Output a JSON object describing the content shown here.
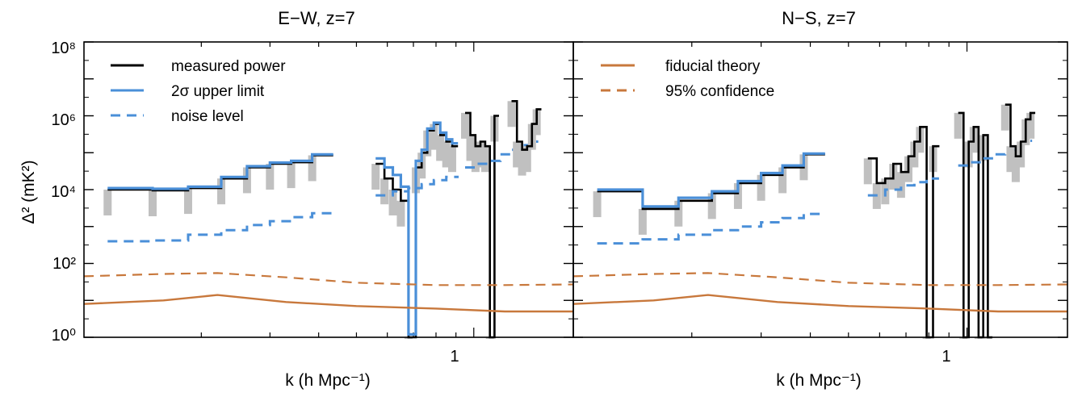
{
  "chart_data": [
    {
      "type": "line",
      "title": "E−W, z=7",
      "xlabel": "k (h Mpc⁻¹)",
      "ylabel": "Δ² (mK²)",
      "xscale": "log",
      "yscale": "log",
      "xlim": [
        0.1,
        1.8
      ],
      "ylim": [
        1,
        100000000
      ],
      "x_tick_labels": [
        "1"
      ],
      "y_tick_labels": [
        "10⁰",
        "10²",
        "10⁴",
        "10⁶",
        "10⁸"
      ],
      "legend": [
        "measured power",
        "2σ upper limit",
        "noise level"
      ],
      "colors": {
        "measured": "#000000",
        "upper": "#4a8fd8",
        "noise": "#4a8fd8",
        "theory": "#c8783c",
        "band": "#c0c0c0"
      },
      "series": [
        {
          "name": "measured power",
          "x": [
            0.115,
            0.15,
            0.185,
            0.225,
            0.262,
            0.3,
            0.34,
            0.385
          ],
          "values": [
            10000,
            9500,
            11000,
            20000,
            40000,
            50000,
            55000,
            85000
          ]
        },
        {
          "name": "2σ upper limit",
          "x": [
            0.115,
            0.15,
            0.185,
            0.225,
            0.262,
            0.3,
            0.34,
            0.385
          ],
          "values": [
            11000,
            10500,
            12000,
            22000,
            43000,
            54000,
            60000,
            90000
          ]
        },
        {
          "name": "noise level",
          "x": [
            0.115,
            0.15,
            0.185,
            0.225,
            0.262,
            0.3,
            0.34,
            0.385
          ],
          "values": [
            400,
            420,
            600,
            800,
            1100,
            1400,
            1800,
            2300
          ]
        },
        {
          "name": "measured power",
          "x": [
            0.56,
            0.59,
            0.62,
            0.65,
            0.68,
            0.71,
            0.735,
            0.76,
            0.79,
            0.82,
            0.85,
            0.88
          ],
          "values": [
            50000,
            20000,
            10000,
            5000,
            1,
            40000,
            100000,
            400000,
            600000,
            300000,
            200000,
            150000
          ]
        },
        {
          "name": "2σ upper limit",
          "x": [
            0.56,
            0.59,
            0.62,
            0.65,
            0.68,
            0.71,
            0.735,
            0.76,
            0.79,
            0.82,
            0.85,
            0.88
          ],
          "values": [
            70000,
            40000,
            25000,
            12000,
            1.2,
            60000,
            120000,
            450000,
            650000,
            350000,
            230000,
            180000
          ]
        },
        {
          "name": "noise level",
          "x": [
            0.56,
            0.62,
            0.68,
            0.735,
            0.79,
            0.85
          ],
          "values": [
            7000,
            9000,
            11000,
            14000,
            18000,
            22000
          ]
        },
        {
          "name": "measured power",
          "x": [
            0.95,
            0.98,
            1.01,
            1.04,
            1.07,
            1.1,
            1.13
          ],
          "values": [
            1200000,
            300000,
            150000,
            200000,
            150000,
            1,
            1000000
          ]
        },
        {
          "name": "noise level",
          "x": [
            0.95,
            1.02,
            1.1,
            1.17,
            1.25,
            1.32,
            1.39
          ],
          "values": [
            40000,
            50000,
            60000,
            90000,
            120000,
            160000,
            200000
          ]
        },
        {
          "name": "measured power",
          "x": [
            1.25,
            1.29,
            1.33,
            1.37,
            1.41,
            1.45
          ],
          "values": [
            2500000,
            200000,
            120000,
            150000,
            600000,
            1500000
          ]
        },
        {
          "name": "fiducial theory",
          "x": [
            0.1,
            0.16,
            0.22,
            0.33,
            0.5,
            0.8,
            1.2,
            1.8
          ],
          "values": [
            8,
            10,
            14,
            9,
            7,
            6,
            5,
            5
          ]
        },
        {
          "name": "95% confidence",
          "x": [
            0.1,
            0.16,
            0.22,
            0.33,
            0.5,
            0.8,
            1.2,
            1.8
          ],
          "values": [
            45,
            52,
            55,
            42,
            30,
            26,
            26,
            27
          ]
        }
      ]
    },
    {
      "type": "line",
      "title": "N−S, z=7",
      "xlabel": "k (h Mpc⁻¹)",
      "ylabel": "",
      "xscale": "log",
      "yscale": "log",
      "xlim": [
        0.1,
        1.8
      ],
      "ylim": [
        1,
        100000000
      ],
      "x_tick_labels": [
        "1"
      ],
      "legend": [
        "fiducial theory",
        "95% confidence"
      ],
      "series": [
        {
          "name": "measured power",
          "x": [
            0.115,
            0.15,
            0.185,
            0.225,
            0.262,
            0.3,
            0.34,
            0.385
          ],
          "values": [
            9000,
            3000,
            5000,
            8000,
            15000,
            25000,
            40000,
            90000
          ]
        },
        {
          "name": "2σ upper limit",
          "x": [
            0.115,
            0.15,
            0.185,
            0.225,
            0.262,
            0.3,
            0.34,
            0.385
          ],
          "values": [
            10000,
            3500,
            6000,
            9000,
            17000,
            28000,
            45000,
            95000
          ]
        },
        {
          "name": "noise level",
          "x": [
            0.115,
            0.15,
            0.185,
            0.225,
            0.262,
            0.3,
            0.34,
            0.385
          ],
          "values": [
            350,
            450,
            600,
            800,
            1000,
            1300,
            1700,
            2200
          ]
        },
        {
          "name": "measured power",
          "x": [
            0.56,
            0.59,
            0.62,
            0.65,
            0.68,
            0.71,
            0.735,
            0.76,
            0.79,
            0.82
          ],
          "values": [
            70000,
            15000,
            20000,
            50000,
            30000,
            80000,
            200000,
            500000,
            1,
            150000
          ]
        },
        {
          "name": "noise level",
          "x": [
            0.56,
            0.62,
            0.68,
            0.735,
            0.79
          ],
          "values": [
            7000,
            10000,
            13000,
            16000,
            20000
          ]
        },
        {
          "name": "measured power",
          "x": [
            0.95,
            0.98,
            1.01,
            1.04,
            1.07,
            1.1,
            1.13
          ],
          "values": [
            1200000,
            1,
            200000,
            500000,
            1,
            300000,
            1
          ]
        },
        {
          "name": "noise level",
          "x": [
            0.95,
            1.02,
            1.1,
            1.17,
            1.25,
            1.32,
            1.39
          ],
          "values": [
            45000,
            55000,
            70000,
            90000,
            120000,
            160000,
            210000
          ]
        },
        {
          "name": "measured power",
          "x": [
            1.25,
            1.29,
            1.33,
            1.37,
            1.41,
            1.45
          ],
          "values": [
            2000000,
            150000,
            80000,
            200000,
            800000,
            1200000
          ]
        },
        {
          "name": "fiducial theory",
          "x": [
            0.1,
            0.16,
            0.22,
            0.33,
            0.5,
            0.8,
            1.2,
            1.8
          ],
          "values": [
            8,
            10,
            14,
            9,
            7,
            6,
            5,
            5
          ]
        },
        {
          "name": "95% confidence",
          "x": [
            0.1,
            0.16,
            0.22,
            0.33,
            0.5,
            0.8,
            1.2,
            1.8
          ],
          "values": [
            45,
            52,
            55,
            42,
            30,
            26,
            26,
            27
          ]
        }
      ]
    }
  ]
}
